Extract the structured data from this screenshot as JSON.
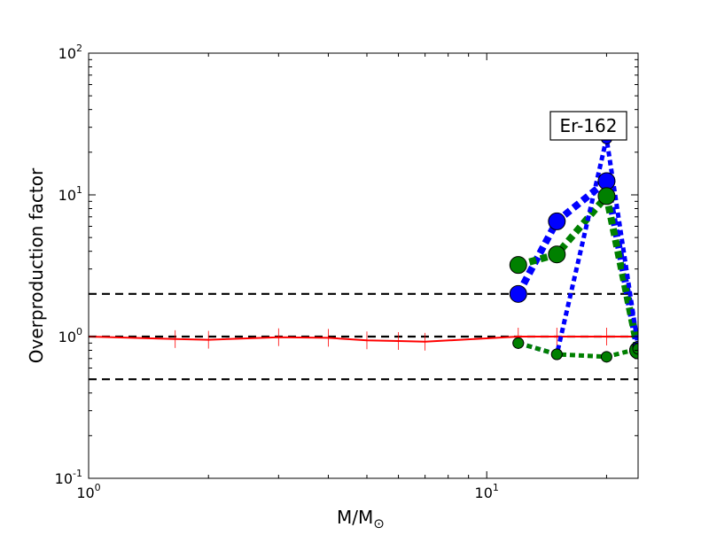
{
  "chart_data": {
    "type": "line",
    "xscale": "log",
    "yscale": "log",
    "xlim": [
      1,
      24
    ],
    "ylim": [
      0.1,
      100
    ],
    "xlabel": "M/M",
    "xlabel_sub": "⊙",
    "ylabel": "Overproduction factor",
    "x_ticks": [
      {
        "value": 1,
        "base": "10",
        "exp": "0"
      },
      {
        "value": 10,
        "base": "10",
        "exp": "1"
      }
    ],
    "y_ticks": [
      {
        "value": 0.1,
        "base": "10",
        "exp": "-1"
      },
      {
        "value": 1,
        "base": "10",
        "exp": "0"
      },
      {
        "value": 10,
        "base": "10",
        "exp": "1"
      },
      {
        "value": 100,
        "base": "10",
        "exp": "2"
      }
    ],
    "annotation": "Er-162",
    "reference_lines": [
      0.5,
      1,
      2
    ],
    "series": [
      {
        "color": "#ff0000",
        "style": "solid",
        "marker": "tick",
        "x": [
          1,
          1.65,
          2,
          3,
          4,
          5,
          6,
          7,
          12,
          15,
          20,
          24
        ],
        "y": [
          1.0,
          0.96,
          0.95,
          0.99,
          0.98,
          0.94,
          0.93,
          0.92,
          1.0,
          1.0,
          1.0,
          1.0
        ]
      },
      {
        "color": "#0000ff",
        "style": "dotted-thick",
        "marker": "circle-large",
        "x": [
          12,
          15,
          20,
          24
        ],
        "y": [
          2.0,
          6.5,
          12.5,
          0.8
        ]
      },
      {
        "color": "#008000",
        "style": "dotted-thick",
        "marker": "circle-large",
        "x": [
          12,
          15,
          20,
          24
        ],
        "y": [
          3.2,
          3.8,
          9.8,
          0.8
        ]
      },
      {
        "color": "#0000ff",
        "style": "dotted",
        "marker": "circle-small",
        "x": [
          12,
          15,
          20,
          24
        ],
        "y": [
          0.9,
          0.75,
          25,
          0.85
        ]
      },
      {
        "color": "#008000",
        "style": "dotted",
        "marker": "circle-small",
        "x": [
          12,
          15,
          20,
          24
        ],
        "y": [
          0.9,
          0.75,
          0.72,
          0.82
        ]
      }
    ]
  }
}
